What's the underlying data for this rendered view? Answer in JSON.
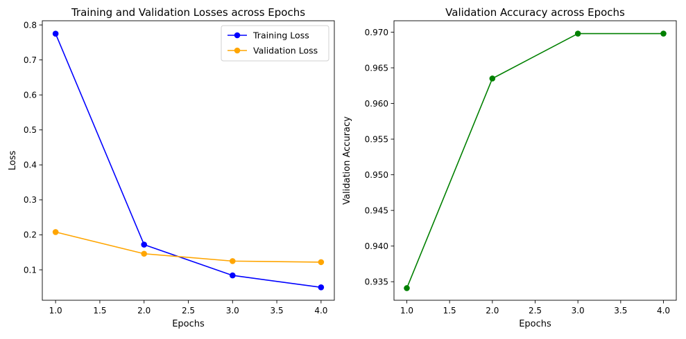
{
  "chart_data": [
    {
      "type": "line",
      "title": "Training and Validation Losses across Epochs",
      "xlabel": "Epochs",
      "ylabel": "Loss",
      "x": [
        1,
        2,
        3,
        4
      ],
      "xlim": [
        0.85,
        4.15
      ],
      "ylim": [
        0.013,
        0.812
      ],
      "xticks": [
        1.0,
        1.5,
        2.0,
        2.5,
        3.0,
        3.5,
        4.0
      ],
      "yticks": [
        0.1,
        0.2,
        0.3,
        0.4,
        0.5,
        0.6,
        0.7,
        0.8
      ],
      "tick_decimals": 1,
      "grid": false,
      "legend": "top-right",
      "series": [
        {
          "name": "Training Loss",
          "color": "#0000ff",
          "values": [
            0.775,
            0.172,
            0.084,
            0.05
          ]
        },
        {
          "name": "Validation Loss",
          "color": "#ffa500",
          "values": [
            0.208,
            0.146,
            0.125,
            0.122
          ]
        }
      ]
    },
    {
      "type": "line",
      "title": "Validation Accuracy across Epochs",
      "xlabel": "Epochs",
      "ylabel": "Validation Accuracy",
      "x": [
        1,
        2,
        3,
        4
      ],
      "xlim": [
        0.85,
        4.15
      ],
      "ylim": [
        0.9324,
        0.9716
      ],
      "xticks": [
        1.0,
        1.5,
        2.0,
        2.5,
        3.0,
        3.5,
        4.0
      ],
      "yticks": [
        0.935,
        0.94,
        0.945,
        0.95,
        0.955,
        0.96,
        0.965,
        0.97
      ],
      "tick_decimals": 3,
      "grid": false,
      "legend": "none",
      "series": [
        {
          "color": "#008000",
          "values": [
            0.9341,
            0.9635,
            0.9698,
            0.9698
          ]
        }
      ]
    }
  ]
}
